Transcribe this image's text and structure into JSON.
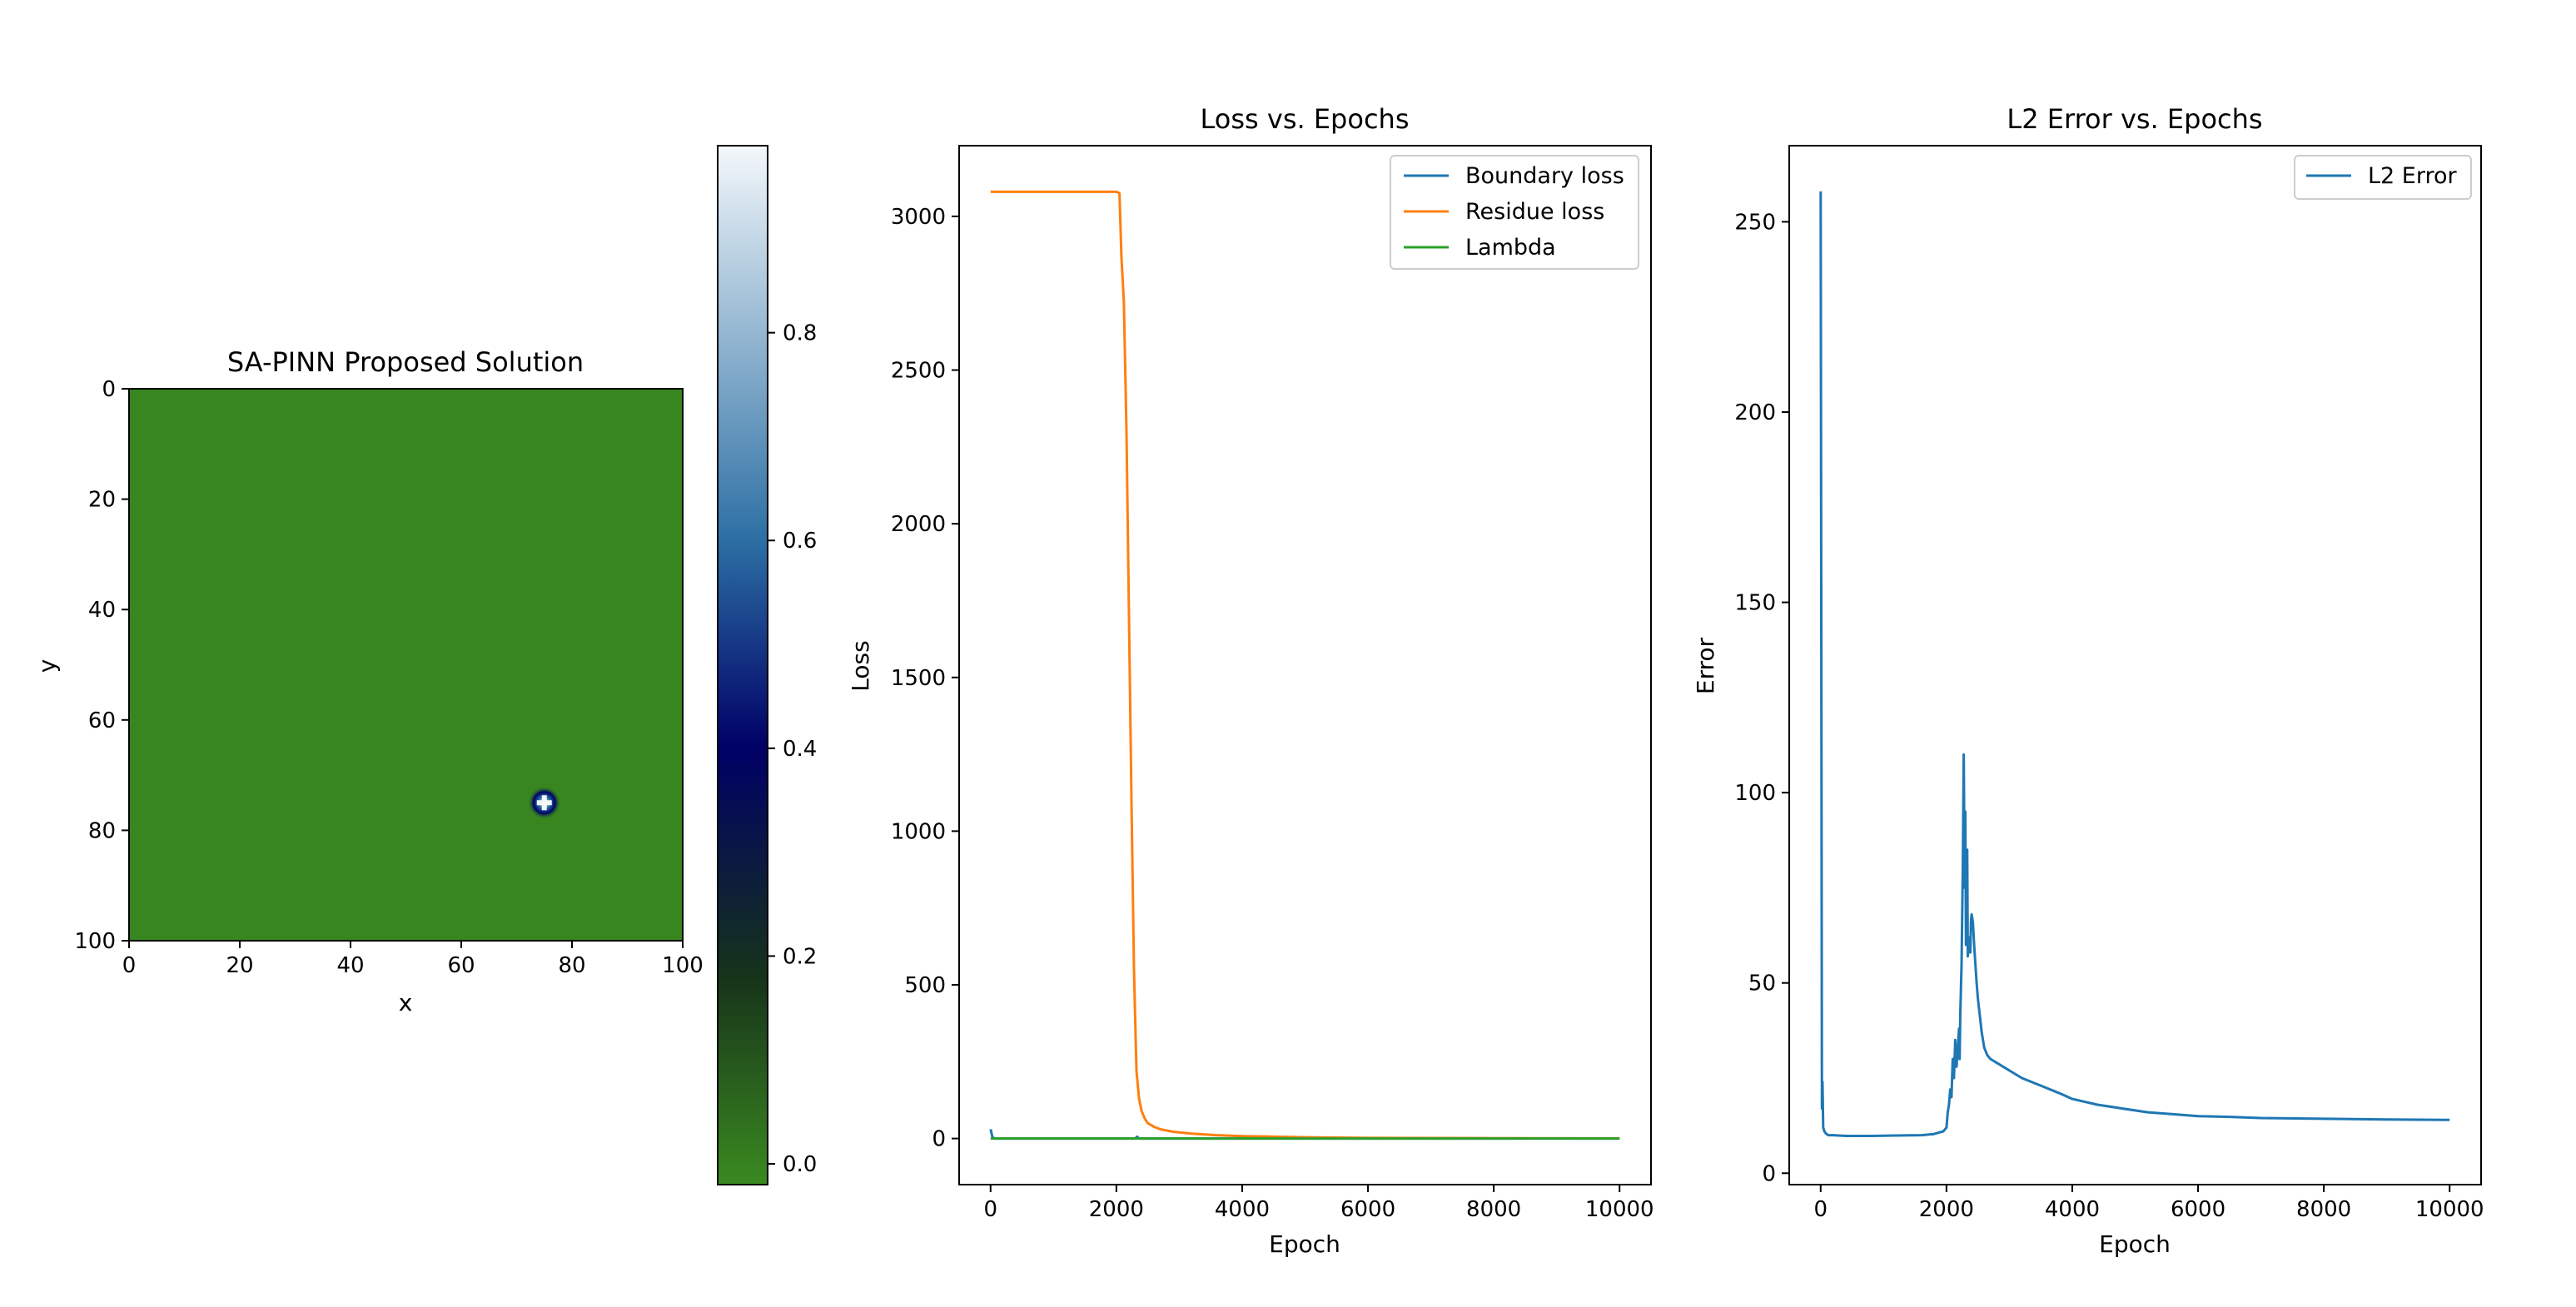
{
  "chart_data": [
    {
      "type": "heatmap",
      "title": "SA-PINN Proposed Solution",
      "xlabel": "x",
      "ylabel": "y",
      "xlim": [
        0,
        100
      ],
      "ylim": [
        100,
        0
      ],
      "xticks": [
        0,
        20,
        40,
        60,
        80,
        100
      ],
      "yticks": [
        0,
        20,
        40,
        60,
        80,
        100
      ],
      "background_value": 0.0,
      "peak": {
        "x": 75,
        "y": 75,
        "value": 0.97
      },
      "colorbar": {
        "range": [
          -0.02,
          0.98
        ],
        "ticks": [
          "0.0",
          "0.2",
          "0.4",
          "0.6",
          "0.8"
        ],
        "tick_values": [
          0.0,
          0.2,
          0.4,
          0.6,
          0.8
        ],
        "colors": [
          "#3a8a20",
          "#16331a",
          "#000066",
          "#2c6fa4",
          "#f3f8fb"
        ]
      }
    },
    {
      "type": "line",
      "title": "Loss vs. Epochs",
      "xlabel": "Epoch",
      "ylabel": "Loss",
      "xlim": [
        -500,
        10500
      ],
      "ylim": [
        -150,
        3230
      ],
      "xticks": [
        0,
        2000,
        4000,
        6000,
        8000,
        10000
      ],
      "yticks": [
        0,
        500,
        1000,
        1500,
        2000,
        2500,
        3000
      ],
      "legend": "top-right",
      "series": [
        {
          "name": "Boundary loss",
          "color": "#1f77b4",
          "x": [
            0,
            30,
            60,
            100,
            2300,
            2330,
            2360,
            10000
          ],
          "y": [
            30,
            5,
            0,
            0,
            0,
            6,
            0,
            0
          ]
        },
        {
          "name": "Residue loss",
          "color": "#ff7f0e",
          "x": [
            0,
            2000,
            2050,
            2080,
            2120,
            2160,
            2200,
            2240,
            2280,
            2320,
            2360,
            2400,
            2450,
            2500,
            2600,
            2700,
            2900,
            3200,
            3600,
            4000,
            5000,
            6000,
            8000,
            10000
          ],
          "y": [
            3080,
            3080,
            3075,
            2870,
            2720,
            2300,
            1700,
            1100,
            550,
            220,
            130,
            90,
            65,
            50,
            38,
            30,
            22,
            16,
            11,
            8,
            4,
            2,
            1,
            0.5
          ]
        },
        {
          "name": "Lambda",
          "color": "#2ca02c",
          "x": [
            0,
            10000
          ],
          "y": [
            0,
            0
          ]
        }
      ]
    },
    {
      "type": "line",
      "title": "L2 Error vs. Epochs",
      "xlabel": "Epoch",
      "ylabel": "Error",
      "xlim": [
        -500,
        10500
      ],
      "ylim": [
        -3,
        270
      ],
      "xticks": [
        0,
        2000,
        4000,
        6000,
        8000,
        10000
      ],
      "yticks": [
        0,
        50,
        100,
        150,
        200,
        250
      ],
      "legend": "top-right",
      "series": [
        {
          "name": "L2 Error",
          "color": "#1f77b4",
          "x": [
            0,
            10,
            20,
            30,
            40,
            60,
            80,
            120,
            200,
            400,
            800,
            1200,
            1600,
            1800,
            1950,
            2000,
            2020,
            2040,
            2060,
            2080,
            2100,
            2120,
            2140,
            2160,
            2180,
            2200,
            2210,
            2220,
            2240,
            2260,
            2275,
            2290,
            2300,
            2310,
            2330,
            2340,
            2355,
            2370,
            2380,
            2390,
            2400,
            2420,
            2440,
            2460,
            2480,
            2500,
            2520,
            2540,
            2560,
            2580,
            2600,
            2650,
            2700,
            2800,
            2900,
            3000,
            3200,
            3500,
            3800,
            4000,
            4400,
            4800,
            5200,
            5600,
            6000,
            6500,
            7000,
            8000,
            9000,
            10000
          ],
          "y": [
            258,
            150,
            17,
            24,
            12,
            11,
            10.5,
            10,
            10,
            9.8,
            9.8,
            9.9,
            10,
            10.3,
            11,
            12,
            16,
            18,
            22,
            20,
            30,
            25,
            35,
            28,
            33,
            38,
            30,
            42,
            55,
            80,
            110,
            75,
            95,
            60,
            85,
            57,
            62,
            60,
            58,
            66,
            68,
            66,
            60,
            55,
            50,
            46,
            43,
            40,
            37,
            35,
            33,
            31,
            30,
            29,
            28,
            27,
            25,
            23,
            21,
            19.5,
            18,
            17,
            16,
            15.5,
            15,
            14.8,
            14.5,
            14.3,
            14.1,
            14
          ]
        }
      ]
    }
  ]
}
